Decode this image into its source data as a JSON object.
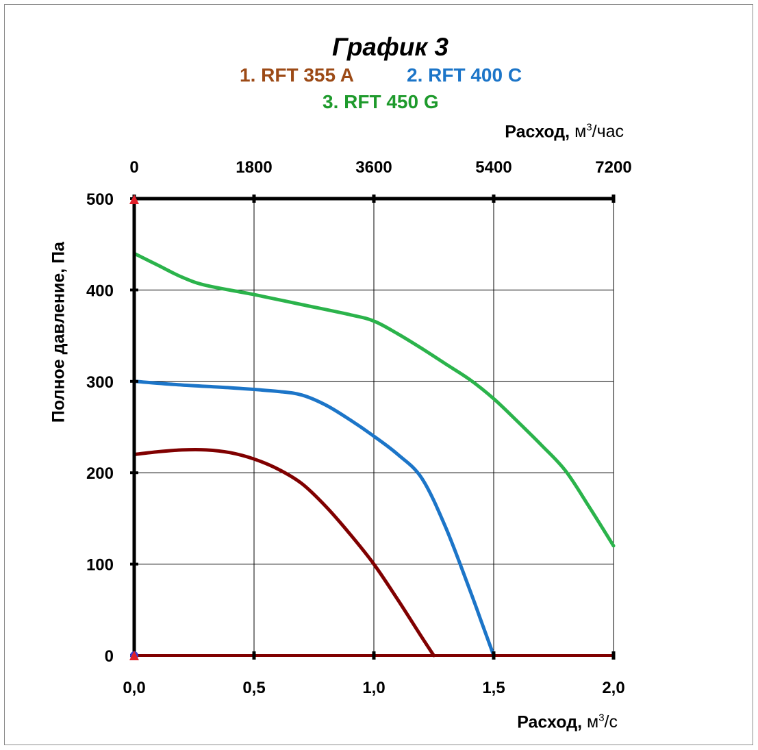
{
  "chart_data": {
    "type": "line",
    "title": "График 3",
    "legend": [
      {
        "label": "1. RFT 355 A",
        "color": "#9c4a16"
      },
      {
        "label": "2. RFT 400 C",
        "color": "#1c75c8"
      },
      {
        "label": "3. RFT 450 G",
        "color": "#1e9a2c"
      }
    ],
    "x_axis_bottom": {
      "label": "Расход,",
      "unit_base": "м",
      "unit_sup": "3",
      "unit_rest": "/с",
      "ticks": [
        "0,0",
        "0,5",
        "1,0",
        "1,5",
        "2,0"
      ],
      "range": [
        0,
        2
      ]
    },
    "x_axis_top": {
      "label": "Расход,",
      "unit_base": "м",
      "unit_sup": "3",
      "unit_rest": "/час",
      "ticks": [
        "0",
        "1800",
        "3600",
        "5400",
        "7200"
      ],
      "range": [
        0,
        7200
      ]
    },
    "y_axis": {
      "label": "Полное давление, Па",
      "ticks": [
        "0",
        "100",
        "200",
        "300",
        "400",
        "500"
      ],
      "range": [
        0,
        500
      ]
    },
    "grid": true,
    "series": [
      {
        "name": "1. RFT 355 A",
        "color": "#800000",
        "x": [
          0,
          0.1,
          0.2,
          0.3,
          0.4,
          0.5,
          0.6,
          0.7,
          0.8,
          0.9,
          1.0,
          1.1,
          1.2,
          1.25
        ],
        "y": [
          220,
          223,
          225,
          225,
          222,
          215,
          204,
          188,
          163,
          133,
          100,
          61,
          20,
          0
        ]
      },
      {
        "name": "2. RFT 400 C",
        "color": "#1c75c8",
        "x": [
          0,
          0.2,
          0.4,
          0.6,
          0.7,
          0.8,
          0.9,
          1.0,
          1.1,
          1.2,
          1.3,
          1.4,
          1.45,
          1.5
        ],
        "y": [
          300,
          296,
          293,
          289,
          285,
          274,
          258,
          240,
          220,
          194,
          140,
          72,
          36,
          0
        ]
      },
      {
        "name": "3. RFT 450 G",
        "color": "#2bb34b",
        "x": [
          0,
          0.1,
          0.2,
          0.3,
          0.5,
          0.7,
          0.9,
          1.0,
          1.1,
          1.2,
          1.3,
          1.4,
          1.5,
          1.6,
          1.7,
          1.8,
          1.9,
          2.0
        ],
        "y": [
          440,
          427,
          414,
          405,
          395,
          384,
          373,
          366,
          352,
          336,
          319,
          302,
          281,
          256,
          230,
          202,
          162,
          120
        ]
      }
    ]
  }
}
